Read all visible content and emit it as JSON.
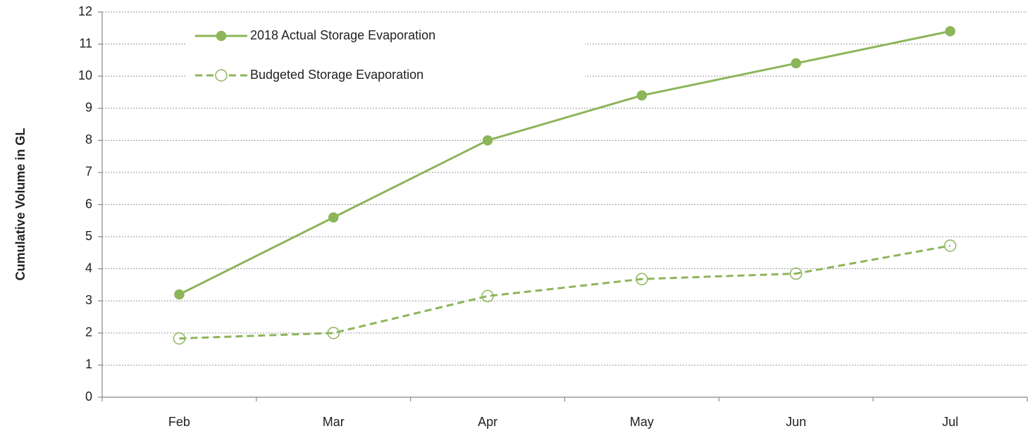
{
  "chart_data": {
    "type": "line",
    "y_label": "Cumulative Volume in GL",
    "categories": [
      "Feb",
      "Mar",
      "Apr",
      "May",
      "Jun",
      "Jul"
    ],
    "series": [
      {
        "name": "2018 Actual Storage Evaporation",
        "color": "#8db55a",
        "style": "solid",
        "marker": "filled",
        "values": [
          3.2,
          5.6,
          8.0,
          9.4,
          10.4,
          11.4
        ]
      },
      {
        "name": "Budgeted Storage Evaporation",
        "color": "#8db55a",
        "style": "dashed",
        "marker": "hollow",
        "values": [
          1.83,
          2.0,
          3.15,
          3.68,
          3.85,
          4.72
        ]
      }
    ],
    "ylim": [
      0,
      12
    ],
    "yticks": [
      0,
      1,
      2,
      3,
      4,
      5,
      6,
      7,
      8,
      9,
      10,
      11,
      12
    ],
    "grid": true,
    "legend": "upper left"
  }
}
